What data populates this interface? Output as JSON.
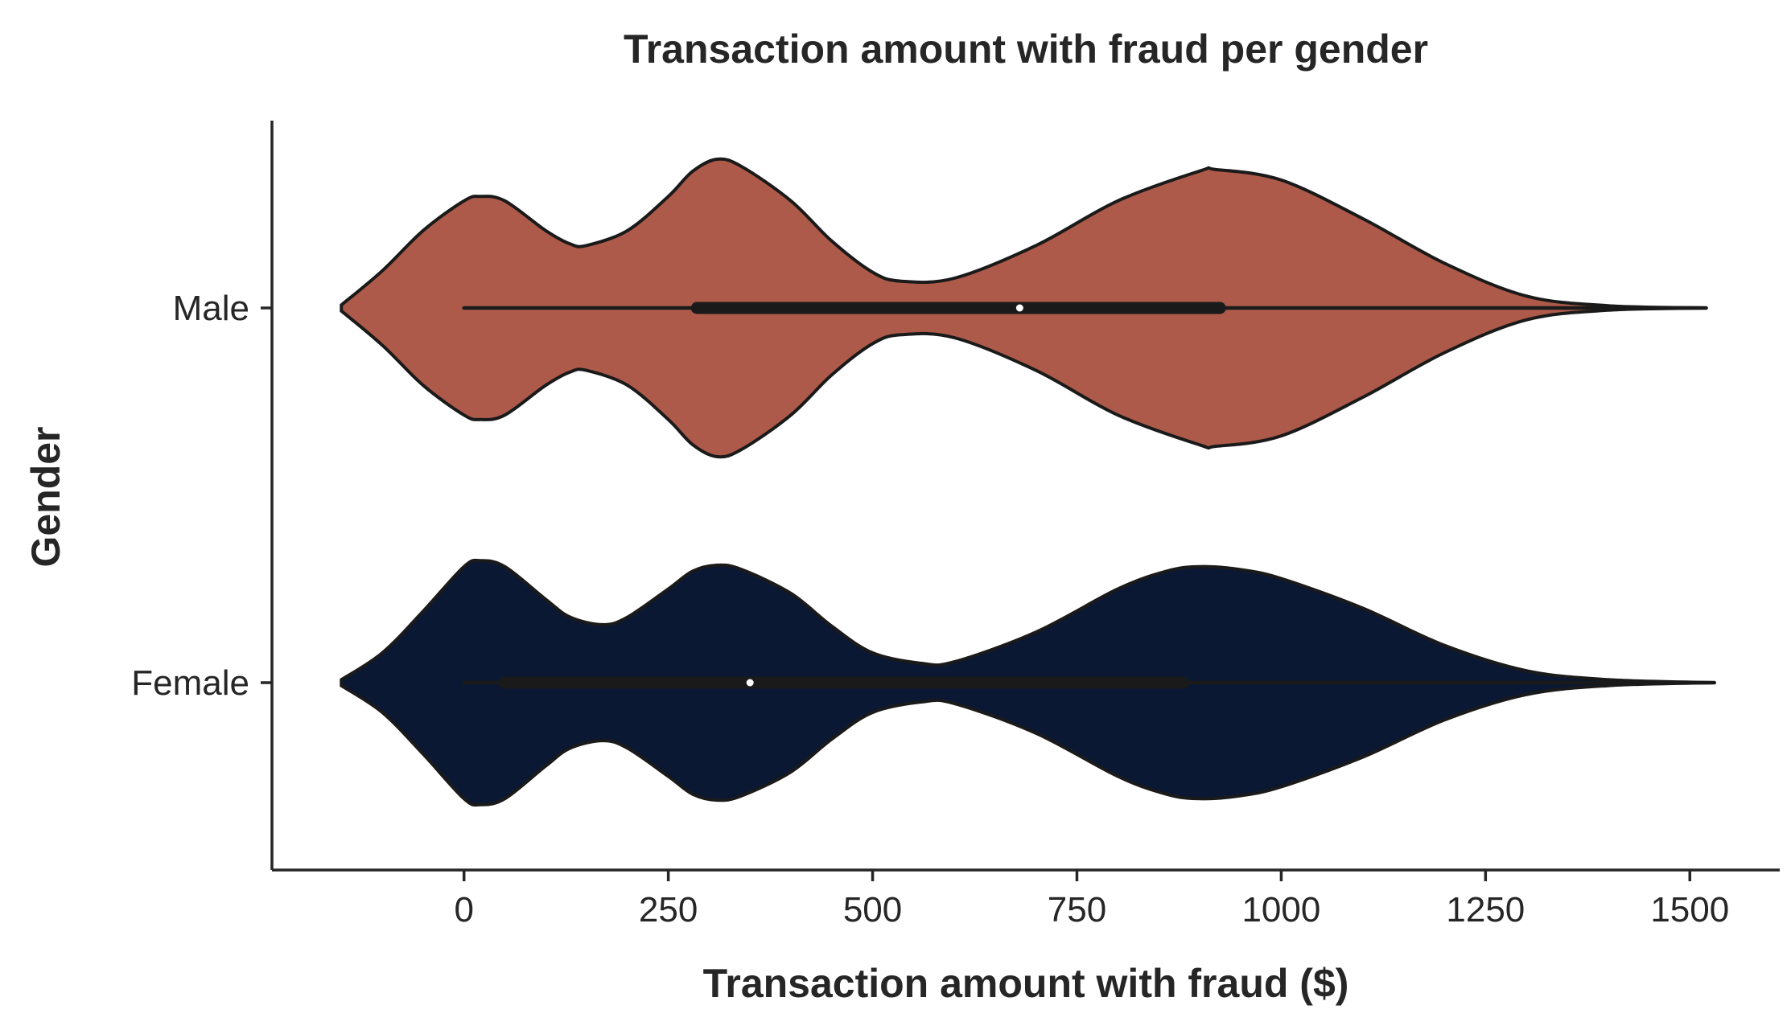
{
  "chart_data": {
    "type": "violin",
    "orientation": "horizontal",
    "title": "Transaction amount with fraud per gender",
    "xlabel": "Transaction amount with fraud ($)",
    "ylabel": "Gender",
    "xlim": [
      -235,
      1610
    ],
    "xticks": [
      0,
      250,
      500,
      750,
      1000,
      1250,
      1500
    ],
    "xtick_labels": [
      "0",
      "250",
      "500",
      "750",
      "1000",
      "1250",
      "1500"
    ],
    "grid": false,
    "legend": "none",
    "categories": [
      "Male",
      "Female"
    ],
    "series": [
      {
        "category": "Male",
        "color": "#ad5a4a",
        "min": 0,
        "q1": 285,
        "median": 680,
        "q3": 925,
        "max": 1520,
        "density": [
          [
            -150,
            0.02
          ],
          [
            -100,
            0.25
          ],
          [
            -50,
            0.52
          ],
          [
            0,
            0.72
          ],
          [
            20,
            0.75
          ],
          [
            50,
            0.72
          ],
          [
            100,
            0.52
          ],
          [
            130,
            0.43
          ],
          [
            150,
            0.42
          ],
          [
            200,
            0.52
          ],
          [
            250,
            0.75
          ],
          [
            280,
            0.92
          ],
          [
            310,
            1.0
          ],
          [
            340,
            0.95
          ],
          [
            400,
            0.72
          ],
          [
            450,
            0.45
          ],
          [
            500,
            0.24
          ],
          [
            535,
            0.18
          ],
          [
            600,
            0.2
          ],
          [
            700,
            0.42
          ],
          [
            800,
            0.72
          ],
          [
            900,
            0.92
          ],
          [
            920,
            0.93
          ],
          [
            1000,
            0.86
          ],
          [
            1100,
            0.6
          ],
          [
            1200,
            0.3
          ],
          [
            1300,
            0.08
          ],
          [
            1400,
            0.015
          ],
          [
            1520,
            0.0
          ]
        ]
      },
      {
        "category": "Female",
        "color": "#0b1833",
        "min": 0,
        "q1": 50,
        "median": 350,
        "q3": 880,
        "max": 1530,
        "density": [
          [
            -150,
            0.02
          ],
          [
            -100,
            0.2
          ],
          [
            -50,
            0.48
          ],
          [
            0,
            0.78
          ],
          [
            20,
            0.82
          ],
          [
            50,
            0.78
          ],
          [
            100,
            0.56
          ],
          [
            130,
            0.44
          ],
          [
            170,
            0.39
          ],
          [
            200,
            0.44
          ],
          [
            250,
            0.63
          ],
          [
            280,
            0.75
          ],
          [
            310,
            0.79
          ],
          [
            340,
            0.76
          ],
          [
            400,
            0.6
          ],
          [
            450,
            0.38
          ],
          [
            500,
            0.2
          ],
          [
            560,
            0.13
          ],
          [
            600,
            0.14
          ],
          [
            700,
            0.34
          ],
          [
            800,
            0.63
          ],
          [
            860,
            0.75
          ],
          [
            900,
            0.78
          ],
          [
            950,
            0.76
          ],
          [
            1000,
            0.7
          ],
          [
            1100,
            0.5
          ],
          [
            1200,
            0.25
          ],
          [
            1300,
            0.08
          ],
          [
            1400,
            0.02
          ],
          [
            1530,
            0.0
          ]
        ]
      }
    ]
  }
}
